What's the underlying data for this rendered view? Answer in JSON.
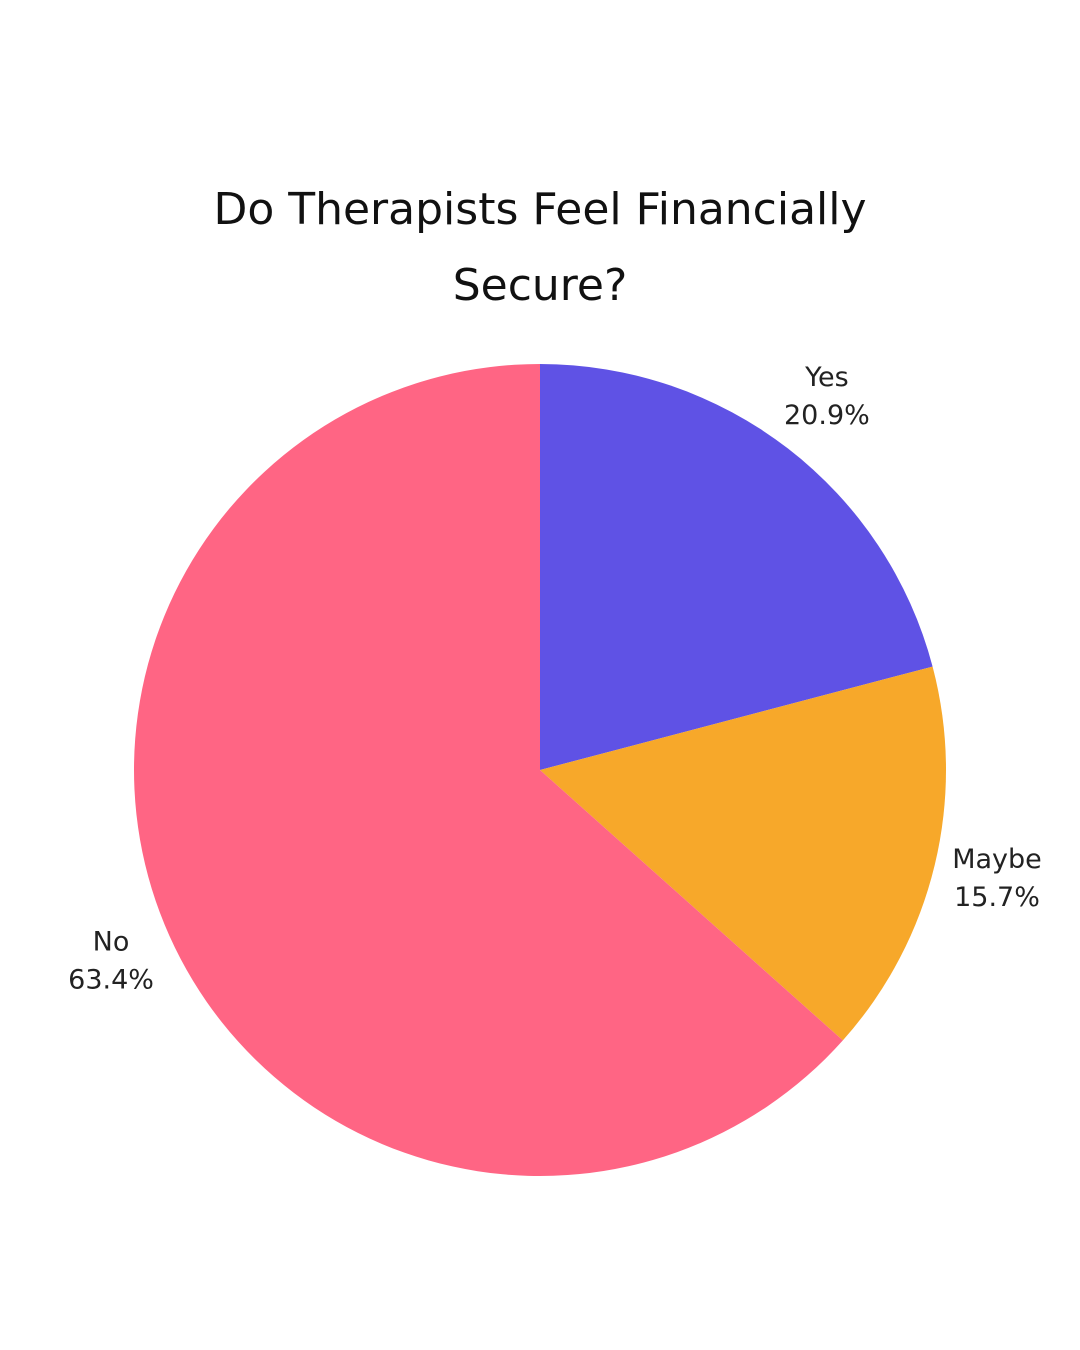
{
  "chart_data": {
    "type": "pie",
    "title": "Do Therapists Feel Financially Secure?",
    "categories": [
      "Yes",
      "Maybe",
      "No"
    ],
    "values": [
      20.9,
      15.7,
      63.4
    ],
    "value_labels": [
      "20.9%",
      "15.7%",
      "63.4%"
    ],
    "colors": [
      "#5f52e5",
      "#f7a82a",
      "#ff6584"
    ]
  }
}
